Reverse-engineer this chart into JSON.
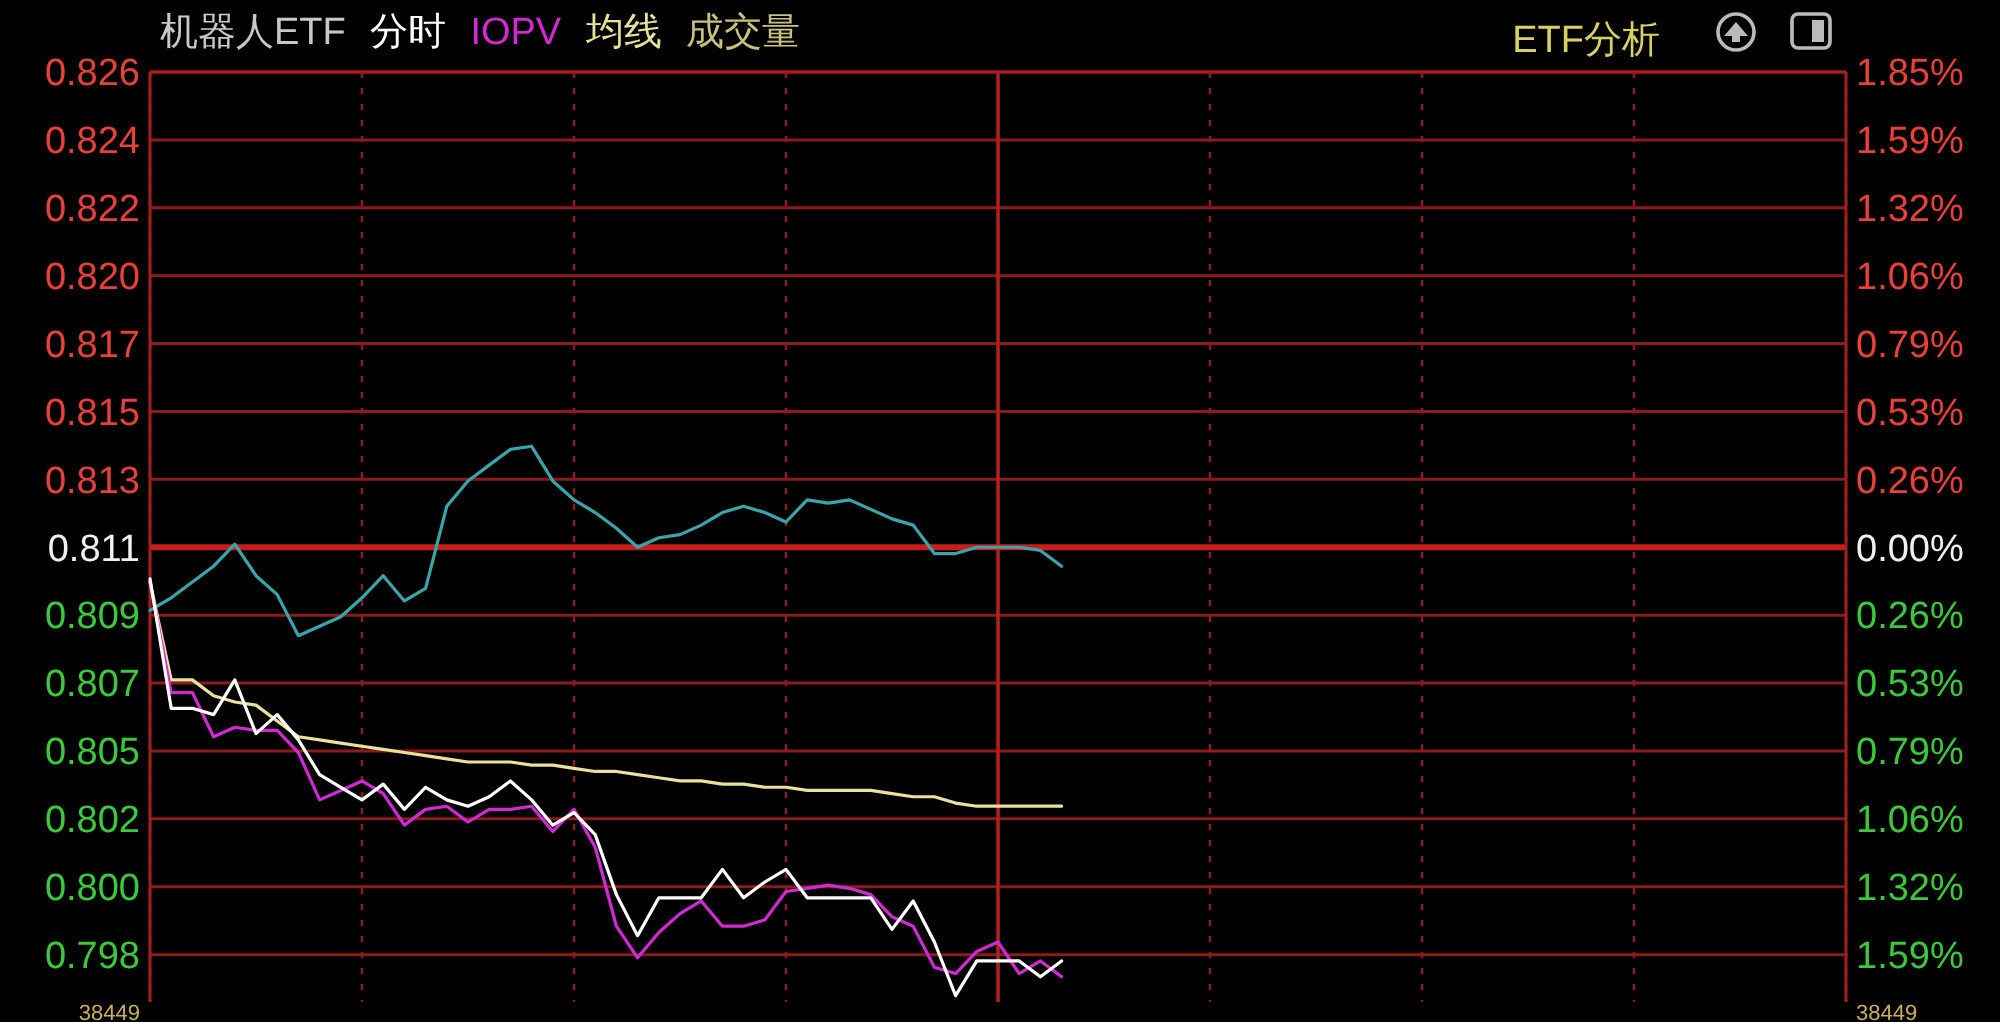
{
  "chart_data": {
    "type": "line",
    "title": "机器人ETF",
    "categories": [
      null,
      null,
      null,
      null,
      null,
      null,
      null,
      null,
      null,
      null,
      null,
      null,
      null,
      null,
      null,
      null,
      null,
      null,
      null,
      null,
      null,
      null,
      null,
      null,
      null,
      null,
      null,
      null,
      null,
      null,
      null,
      null,
      null,
      null,
      null,
      null,
      null,
      null,
      null,
      null,
      null,
      null,
      null,
      null,
      null,
      null,
      null,
      null,
      null,
      null,
      null,
      null,
      null,
      null,
      null,
      null,
      null,
      null,
      null,
      null,
      null,
      null,
      null,
      null,
      null,
      null,
      null,
      null,
      null,
      null,
      null,
      null,
      null,
      null,
      null,
      null,
      null,
      null,
      null,
      null,
      null
    ],
    "ylim": [
      0.7966,
      0.82605
    ],
    "yticks": [
      {
        "value": 0.82605,
        "label": "0.826"
      },
      {
        "value": 0.8239,
        "label": "0.824"
      },
      {
        "value": 0.82175,
        "label": "0.822"
      },
      {
        "value": 0.8196,
        "label": "0.820"
      },
      {
        "value": 0.81745,
        "label": "0.817"
      },
      {
        "value": 0.8153,
        "label": "0.815"
      },
      {
        "value": 0.81315,
        "label": "0.813"
      },
      {
        "value": 0.811,
        "label": "0.811"
      },
      {
        "value": 0.80885,
        "label": "0.809"
      },
      {
        "value": 0.8067,
        "label": "0.807"
      },
      {
        "value": 0.80455,
        "label": "0.805"
      },
      {
        "value": 0.8024,
        "label": "0.802"
      },
      {
        "value": 0.80025,
        "label": "0.800"
      },
      {
        "value": 0.7981,
        "label": "0.798"
      }
    ],
    "y2lim": [
      -1.775,
      1.855
    ],
    "y2ticks": [
      {
        "value": 1.855,
        "label": "1.85%"
      },
      {
        "value": 1.59,
        "label": "1.59%"
      },
      {
        "value": 1.325,
        "label": "1.32%"
      },
      {
        "value": 1.06,
        "label": "1.06%"
      },
      {
        "value": 0.795,
        "label": "0.79%"
      },
      {
        "value": 0.53,
        "label": "0.53%"
      },
      {
        "value": 0.265,
        "label": "0.26%"
      },
      {
        "value": 0,
        "label": "0.00%"
      },
      {
        "value": -0.265,
        "label": "0.26%"
      },
      {
        "value": -0.53,
        "label": "0.53%"
      },
      {
        "value": -0.795,
        "label": "0.79%"
      },
      {
        "value": -1.06,
        "label": "1.06%"
      },
      {
        "value": -1.325,
        "label": "1.32%"
      },
      {
        "value": -1.59,
        "label": "1.59%"
      }
    ],
    "grid": true,
    "marker": "none",
    "line_style": "solid",
    "ref_lines": [
      {
        "axis": "y",
        "value": 0.811,
        "color": "#c81e1e"
      }
    ],
    "annotations": [
      "成交量",
      "ETF分析",
      "38449",
      "38449"
    ],
    "series": [
      {
        "color": "#3aa5a8",
        "values": [
          0.809,
          0.8094,
          0.8099,
          0.8104,
          0.8111,
          0.8101,
          0.8095,
          0.8082,
          0.8085,
          0.8088,
          0.8094,
          0.8101,
          0.8093,
          0.8097,
          0.8123,
          0.8131,
          0.8136,
          0.8141,
          0.8142,
          0.8131,
          0.8125,
          0.8121,
          0.8116,
          0.811,
          0.8113,
          0.8114,
          0.8117,
          0.8121,
          0.8123,
          0.8121,
          0.8118,
          0.8125,
          0.8124,
          0.8125,
          0.8122,
          0.8119,
          0.8117,
          0.8108,
          0.8108,
          0.811,
          0.811,
          0.811,
          0.8109,
          0.8104,
          null,
          null,
          null,
          null,
          null,
          null,
          null,
          null,
          null,
          null,
          null,
          null,
          null,
          null,
          null,
          null,
          null,
          null,
          null,
          null,
          null,
          null,
          null,
          null,
          null,
          null,
          null,
          null,
          null,
          null,
          null,
          null,
          null,
          null,
          null,
          null,
          null
        ]
      },
      {
        "name": "均线",
        "color": "#e8e29a",
        "values": [
          0.8099,
          0.8068,
          0.8068,
          0.8063,
          0.8061,
          0.806,
          0.8055,
          0.805,
          0.8049,
          0.8048,
          0.8047,
          0.8046,
          0.8045,
          0.8044,
          0.8043,
          0.8042,
          0.8042,
          0.8042,
          0.8041,
          0.8041,
          0.804,
          0.8039,
          0.8039,
          0.8038,
          0.8037,
          0.8036,
          0.8036,
          0.8035,
          0.8035,
          0.8034,
          0.8034,
          0.8033,
          0.8033,
          0.8033,
          0.8033,
          0.8032,
          0.8031,
          0.8031,
          0.8029,
          0.8028,
          0.8028,
          0.8028,
          0.8028,
          0.8028,
          null,
          null,
          null,
          null,
          null,
          null,
          null,
          null,
          null,
          null,
          null,
          null,
          null,
          null,
          null,
          null,
          null,
          null,
          null,
          null,
          null,
          null,
          null,
          null,
          null,
          null,
          null,
          null,
          null,
          null,
          null,
          null,
          null,
          null,
          null,
          null,
          null
        ]
      },
      {
        "name": "IOPV",
        "color": "#d22ad2",
        "values": [
          0.8099,
          0.8064,
          0.8064,
          0.805,
          0.8053,
          0.8052,
          0.8052,
          0.8045,
          0.803,
          0.8033,
          0.8036,
          0.8032,
          0.8022,
          0.8027,
          0.8028,
          0.8023,
          0.8027,
          0.8027,
          0.8028,
          0.802,
          0.8027,
          0.8015,
          0.799,
          0.798,
          0.7988,
          0.7994,
          0.7998,
          0.799,
          0.799,
          0.7992,
          0.8001,
          0.8002,
          0.8003,
          0.8002,
          0.8,
          0.7993,
          0.799,
          0.7977,
          0.7975,
          0.7982,
          0.7985,
          0.7975,
          0.7979,
          0.7974,
          null,
          null,
          null,
          null,
          null,
          null,
          null,
          null,
          null,
          null,
          null,
          null,
          null,
          null,
          null,
          null,
          null,
          null,
          null,
          null,
          null,
          null,
          null,
          null,
          null,
          null,
          null,
          null,
          null,
          null,
          null,
          null,
          null,
          null,
          null,
          null,
          null
        ]
      },
      {
        "name": "分时",
        "color": "#ffffff",
        "values": [
          0.81,
          0.8059,
          0.8059,
          0.8057,
          0.8068,
          0.8051,
          0.8057,
          0.8049,
          0.8038,
          0.8034,
          0.803,
          0.8035,
          0.8027,
          0.8034,
          0.803,
          0.8028,
          0.8031,
          0.8036,
          0.803,
          0.8022,
          0.8026,
          0.8019,
          0.8,
          0.7987,
          0.7999,
          0.7999,
          0.7999,
          0.8008,
          0.7999,
          0.8004,
          0.8008,
          0.7999,
          0.7999,
          0.7999,
          0.7999,
          0.7989,
          0.7998,
          0.7985,
          0.7968,
          0.7979,
          0.7979,
          0.7979,
          0.7974,
          0.7979,
          null,
          null,
          null,
          null,
          null,
          null,
          null,
          null,
          null,
          null,
          null,
          null,
          null,
          null,
          null,
          null,
          null,
          null,
          null,
          null,
          null,
          null,
          null,
          null,
          null,
          null,
          null,
          null,
          null,
          null,
          null,
          null,
          null,
          null,
          null,
          null,
          null
        ]
      }
    ]
  }
}
